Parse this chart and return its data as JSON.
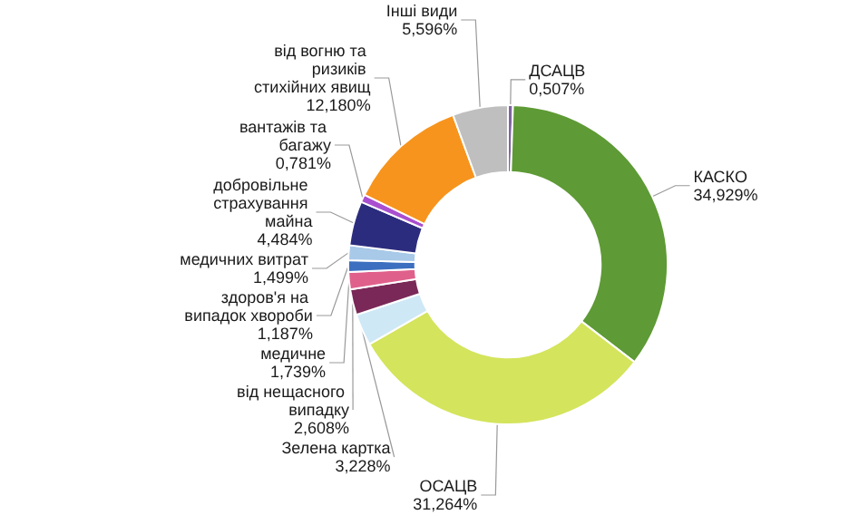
{
  "chart_data": {
    "type": "donut",
    "categories": [
      "ДСАЦВ",
      "КАСКО",
      "ОСАЦВ",
      "Зелена картка",
      "від нещасного випадку",
      "медичне",
      "здоров'я на випадок хвороби",
      "медичних витрат",
      "добровільне страхування майна",
      "вантажів та багажу",
      "від вогню та ризиків стихійних явищ",
      "Інші види"
    ],
    "values": [
      0.507,
      34.929,
      31.264,
      3.228,
      2.608,
      1.739,
      1.187,
      1.499,
      4.484,
      0.781,
      12.18,
      5.596
    ],
    "value_labels": [
      "0,507%",
      "34,929%",
      "31,264%",
      "3,228%",
      "2,608%",
      "1,739%",
      "1,187%",
      "1,499%",
      "4,484%",
      "0,781%",
      "12,180%",
      "5,596%"
    ],
    "colors": [
      "#8064a2",
      "#5e9a35",
      "#d4e45c",
      "#cfe8f6",
      "#7a2858",
      "#e0608c",
      "#3c6fbf",
      "#a8c9e8",
      "#2c2c7e",
      "#a94fd0",
      "#f7941d",
      "#bfbfbf"
    ],
    "legend": false
  }
}
